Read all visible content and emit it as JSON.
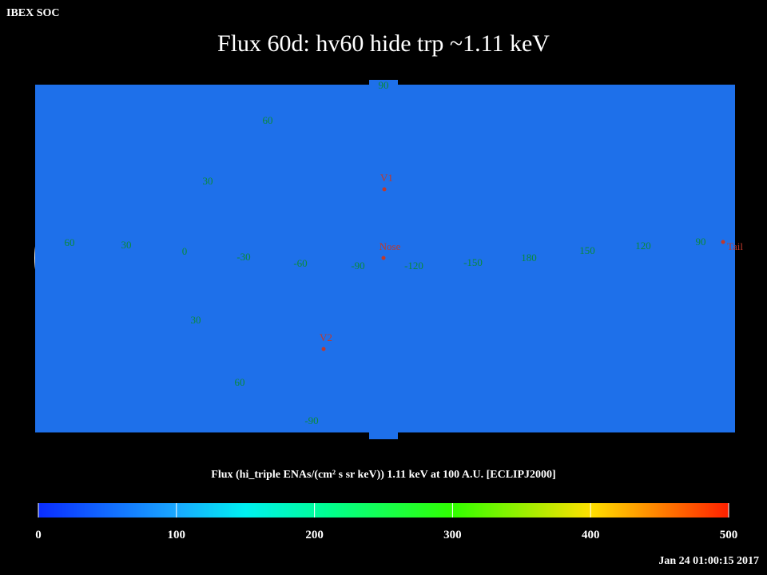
{
  "header": {
    "org": "IBEX SOC",
    "title": "Flux   60d: hv60 hide trp ~1.11 keV"
  },
  "map": {
    "grid_labels": [
      "90",
      "60",
      "30",
      "60",
      "30",
      "0",
      "-30",
      "-60",
      "-90",
      "-120",
      "-150",
      "180",
      "150",
      "120",
      "90",
      "30",
      "60",
      "-90"
    ],
    "markers": [
      "V1",
      "Nose",
      "V2",
      "Tail"
    ]
  },
  "colorbar": {
    "label": "Flux (hi_triple ENAs/(cm² s sr keV))  1.11 keV at 100 A.U. [ECLIPJ2000]",
    "lim": [
      0,
      500
    ],
    "ticks": [
      0,
      100,
      200,
      300,
      400,
      500
    ]
  },
  "footer": {
    "timestamp": "Jan 24 01:00:15 2017"
  }
}
